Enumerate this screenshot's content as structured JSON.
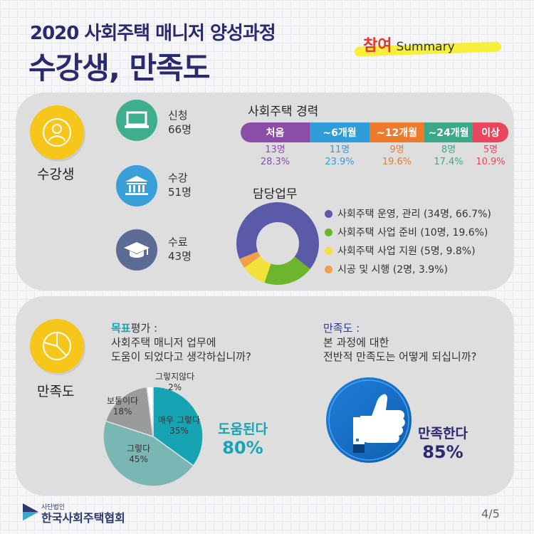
{
  "header": {
    "title_line1": "2020 사회주택 매니저 양성과정",
    "title_line2": "수강생, 만족도",
    "tag_main": "참여",
    "tag_sub": "Summary"
  },
  "students": {
    "section_label": "수강생",
    "stats": [
      {
        "label": "신청",
        "value": "66명",
        "icon": "laptop-icon"
      },
      {
        "label": "수강",
        "value": "51명",
        "icon": "institution-icon"
      },
      {
        "label": "수료",
        "value": "43명",
        "icon": "graduation-cap-icon"
      }
    ],
    "career": {
      "title": "사회주택 경력",
      "items": [
        {
          "label": "처음",
          "count": "13명",
          "pct": "28.3%",
          "color": "#8a4ea8"
        },
        {
          "label": "~6개월",
          "count": "11명",
          "pct": "23.9%",
          "color": "#2e9dd9"
        },
        {
          "label": "~12개월",
          "count": "9명",
          "pct": "19.6%",
          "color": "#ee7a2c"
        },
        {
          "label": "~24개월",
          "count": "8명",
          "pct": "17.4%",
          "color": "#3aa98a"
        },
        {
          "label": "이상",
          "count": "5명",
          "pct": "10.9%",
          "color": "#e8455f"
        }
      ]
    },
    "duty": {
      "title": "담당업무",
      "items": [
        {
          "label": "사회주택 운영, 관리 (34명, 66.7%)",
          "share": 66.7,
          "color": "#5b5aa8"
        },
        {
          "label": "사회주택 사업 준비 (10명, 19.6%)",
          "share": 19.6,
          "color": "#6cb52d"
        },
        {
          "label": "사회주택 사업 지원 (5명, 9.8%)",
          "share": 9.8,
          "color": "#f3e23c"
        },
        {
          "label": "시공 및 시행 (2명, 3.9%)",
          "share": 3.9,
          "color": "#f0a04b"
        }
      ]
    }
  },
  "satisfaction": {
    "section_label": "만족도",
    "goal": {
      "head_highlight": "목표",
      "head_rest": "평가 :",
      "line1": "사회주택 매니저 업무에",
      "line2": "도움이 되었다고 생각하십니까?",
      "slices": [
        {
          "label": "매우 그렇다",
          "pct": "35%",
          "share": 35,
          "color": "#16a4b4"
        },
        {
          "label": "그렇다",
          "pct": "45%",
          "share": 45,
          "color": "#79b6b4"
        },
        {
          "label": "보통이다",
          "pct": "18%",
          "share": 18,
          "color": "#9a9c9c"
        },
        {
          "label": "그렇지않다",
          "pct": "2%",
          "share": 2,
          "color": "#ffffff"
        }
      ],
      "result_label": "도움된다",
      "result_value": "80%"
    },
    "overall": {
      "head": "만족도 :",
      "line1": "본 과정에 대한",
      "line2": "전반적 만족도는 어떻게 되십니까?",
      "icon": "thumbs-up-icon",
      "result_label": "만족한다",
      "result_value": "85%"
    }
  },
  "footer": {
    "org_small": "사단법인",
    "org_name": "한국사회주택협회",
    "page": "4/5"
  }
}
